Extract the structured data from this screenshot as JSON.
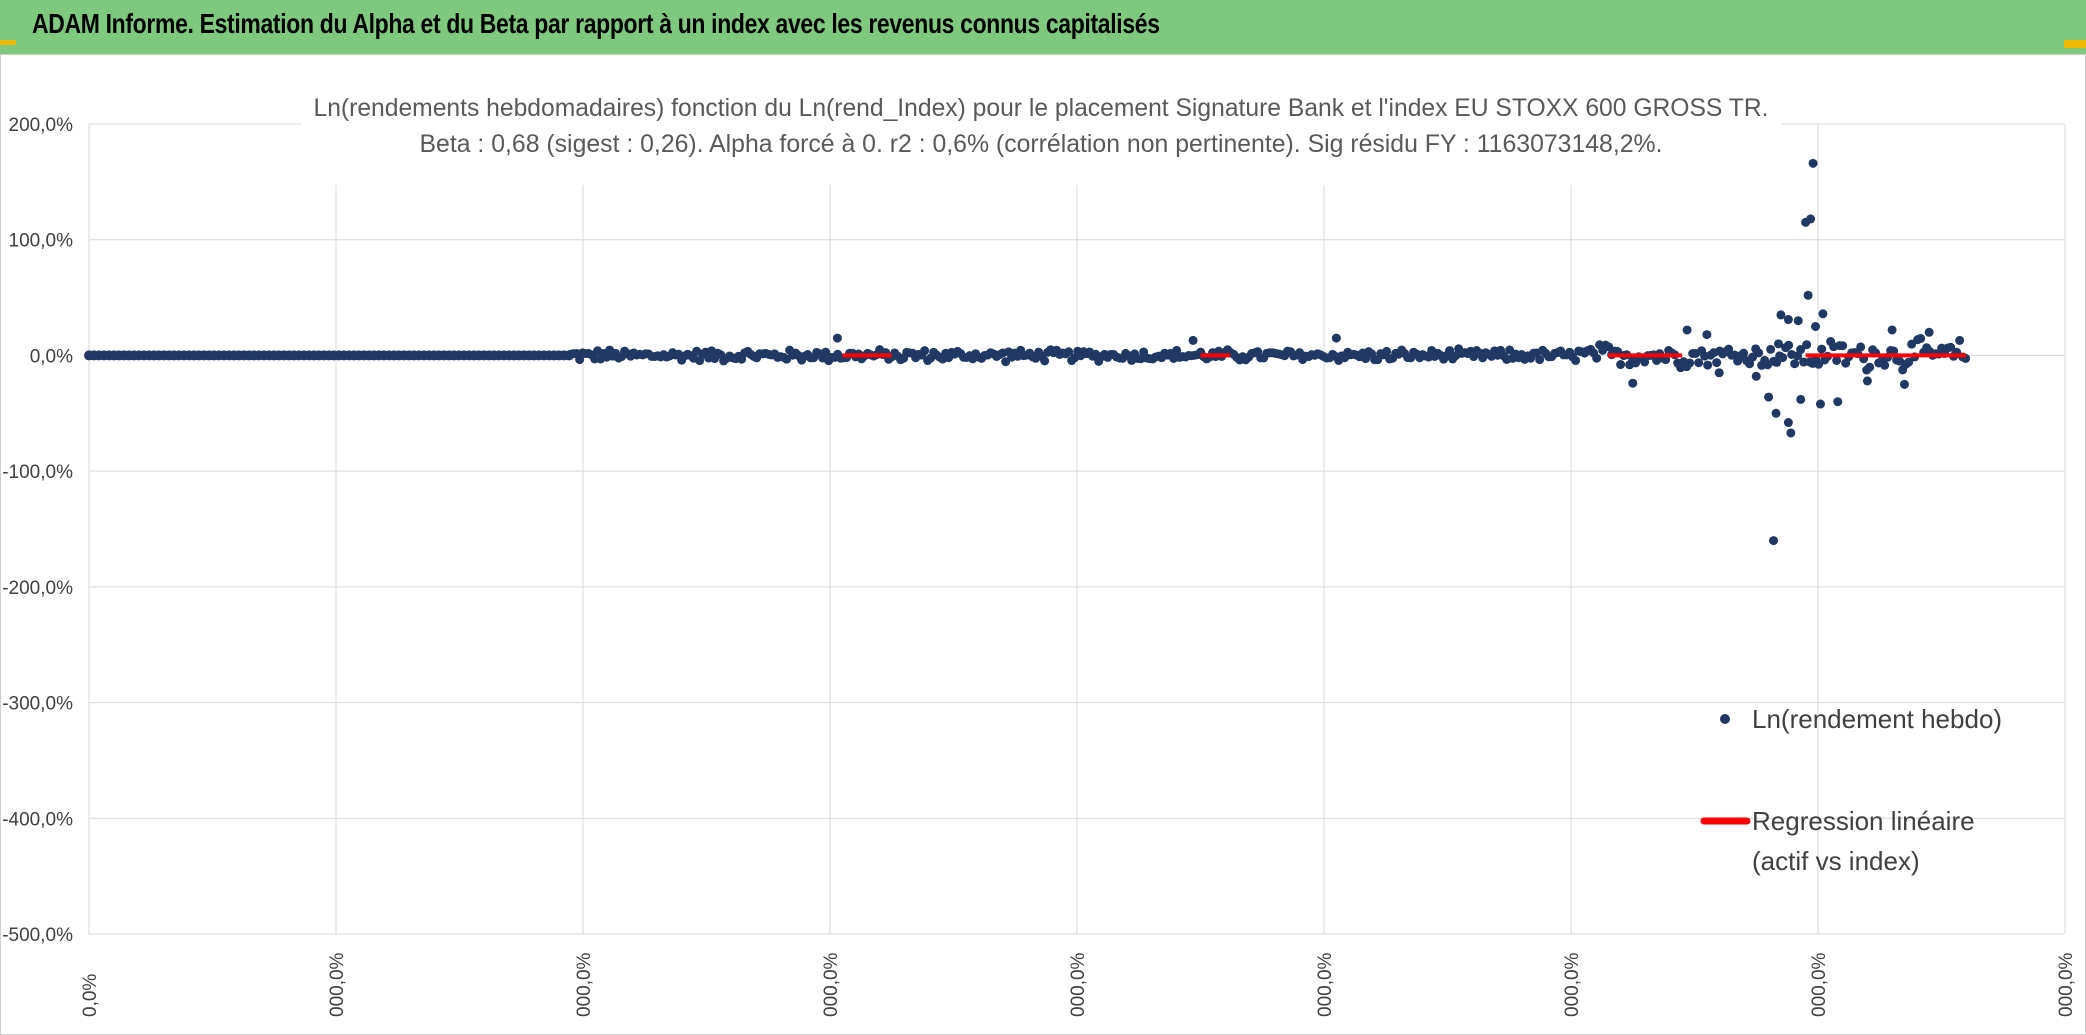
{
  "header": {
    "title": "ADAM Informe. Estimation du Alpha et du Beta par rapport à un index avec les revenus connus capitalisés"
  },
  "colors": {
    "header_bg": "#7fc97f",
    "corner_accent": "#f2b800",
    "points": "#203864",
    "regression": "#ff0000",
    "grid": "#d9d9d9"
  },
  "chart_data": {
    "type": "scatter",
    "title_lines": [
      "Ln(rendements hebdomadaires) fonction du Ln(rend_Index) pour le placement Signature Bank et l'index EU STOXX 600 GROSS TR.",
      "Beta : 0,68 (sigest : 0,26). Alpha forcé à 0. r2 : 0,6% (corrélation non pertinente). Sig résidu FY : 1163073148,2%."
    ],
    "ylim": [
      -500,
      200
    ],
    "y_ticks": [
      "200,0%",
      "100,0%",
      "0,0%",
      "-100,0%",
      "-200,0%",
      "-300,0%",
      "-400,0%",
      "-500,0%"
    ],
    "x_ticks": [
      "0,0%",
      "000,0%",
      "000,0%",
      "000,0%",
      "000,0%",
      "000,0%",
      "000,0%",
      "000,0%",
      "000,0%"
    ],
    "grid": true,
    "legend_position": "bottom-right",
    "series": [
      {
        "name": "Ln(rendement hebdo)",
        "kind": "points",
        "x_range": [
          0,
          7.6
        ],
        "flat_until": 1.95,
        "outliers": [
          {
            "x": 6.98,
            "y": 166
          },
          {
            "x": 6.97,
            "y": 118
          },
          {
            "x": 6.95,
            "y": 115
          },
          {
            "x": 6.96,
            "y": 52
          },
          {
            "x": 6.85,
            "y": 35
          },
          {
            "x": 6.88,
            "y": 31
          },
          {
            "x": 7.02,
            "y": 36
          },
          {
            "x": 6.92,
            "y": 30
          },
          {
            "x": 6.99,
            "y": 25
          },
          {
            "x": 6.8,
            "y": -36
          },
          {
            "x": 6.83,
            "y": -50
          },
          {
            "x": 6.88,
            "y": -58
          },
          {
            "x": 6.89,
            "y": -67
          },
          {
            "x": 6.93,
            "y": -38
          },
          {
            "x": 7.01,
            "y": -42
          },
          {
            "x": 7.08,
            "y": -40
          },
          {
            "x": 7.2,
            "y": -22
          },
          {
            "x": 6.82,
            "y": -160
          },
          {
            "x": 6.84,
            "y": 10
          },
          {
            "x": 7.3,
            "y": 22
          },
          {
            "x": 7.45,
            "y": 20
          },
          {
            "x": 6.25,
            "y": -24
          },
          {
            "x": 6.47,
            "y": 22
          },
          {
            "x": 6.6,
            "y": -15
          },
          {
            "x": 4.47,
            "y": 13
          },
          {
            "x": 5.05,
            "y": 15
          },
          {
            "x": 3.03,
            "y": 15
          },
          {
            "x": 6.55,
            "y": 18
          },
          {
            "x": 6.75,
            "y": -18
          },
          {
            "x": 7.35,
            "y": -25
          }
        ]
      },
      {
        "name": "Regression linéaire\n(actif vs index)",
        "kind": "line",
        "slope": 0.68,
        "intercept": 0
      }
    ],
    "legend": [
      {
        "label": "Ln(rendement hebdo)"
      },
      {
        "label_line1": "Regression linéaire",
        "label_line2": "(actif vs index)"
      }
    ]
  }
}
